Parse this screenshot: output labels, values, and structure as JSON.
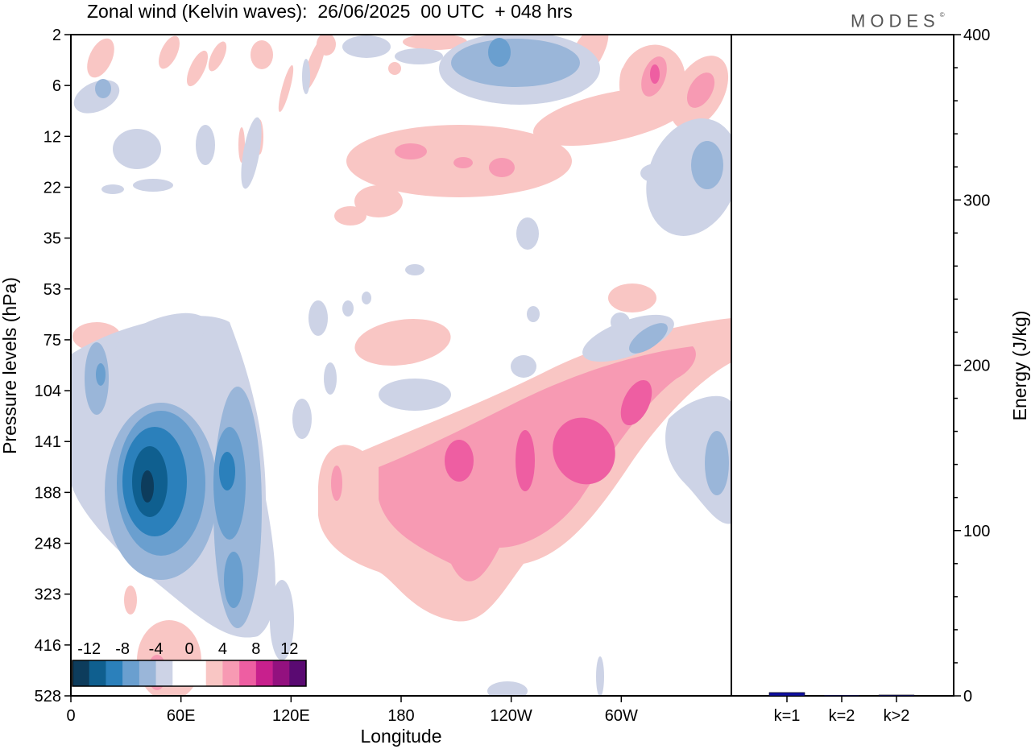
{
  "title": "Zonal wind (Kelvin waves):  26/06/2025  00 UTC  + 048 hrs",
  "brand": "MODES",
  "brand_mark": "©",
  "chart_data": [
    {
      "type": "heatmap",
      "title": "Zonal wind (Kelvin waves):  26/06/2025  00 UTC  + 048 hrs",
      "xlabel": "Longitude",
      "ylabel": "Pressure levels (hPa)",
      "x_ticks": [
        {
          "label": "0",
          "lon": 0
        },
        {
          "label": "60E",
          "lon": 60
        },
        {
          "label": "120E",
          "lon": 120
        },
        {
          "label": "180",
          "lon": 180
        },
        {
          "label": "120W",
          "lon": 240
        },
        {
          "label": "60W",
          "lon": 300
        }
      ],
      "xlim": [
        0,
        360
      ],
      "y_ticks": [
        "2",
        "6",
        "12",
        "22",
        "35",
        "53",
        "75",
        "104",
        "141",
        "188",
        "248",
        "323",
        "416",
        "528"
      ],
      "colorbar": {
        "labels": [
          "-12",
          "-8",
          "-4",
          "0",
          "4",
          "8",
          "12"
        ],
        "colors": [
          "#0d3c5c",
          "#0f5f8f",
          "#2b80bb",
          "#6a9fcf",
          "#9ab6d9",
          "#cdd3e6",
          "#ffffff",
          "#ffffff",
          "#f9c6c4",
          "#f79ab3",
          "#ee5ea2",
          "#c8208d",
          "#93117f",
          "#5a0a72"
        ]
      },
      "features": [
        {
          "sign": "negative",
          "level": 5,
          "lon": 40,
          "level_index": 9.2,
          "note": "core near 60E, 141-248 hPa"
        },
        {
          "sign": "negative",
          "level": 3,
          "lon": 85,
          "level_index": 9.0
        },
        {
          "sign": "positive",
          "level": 3,
          "lon": 260,
          "level_index": 8.6,
          "note": "tilted band 180-60W, 75-323 hPa"
        },
        {
          "sign": "negative",
          "level": 2,
          "lon": 230,
          "level_index": 0.5
        }
      ]
    },
    {
      "type": "bar",
      "categories": [
        "k=1",
        "k=2",
        "k>2"
      ],
      "values": [
        2,
        0.3,
        0.5
      ],
      "ylabel": "Energy (J/kg)",
      "ylim": [
        0,
        400
      ],
      "y_ticks": [
        0,
        100,
        200,
        300,
        400
      ],
      "bar_color": "#1010a0"
    }
  ]
}
